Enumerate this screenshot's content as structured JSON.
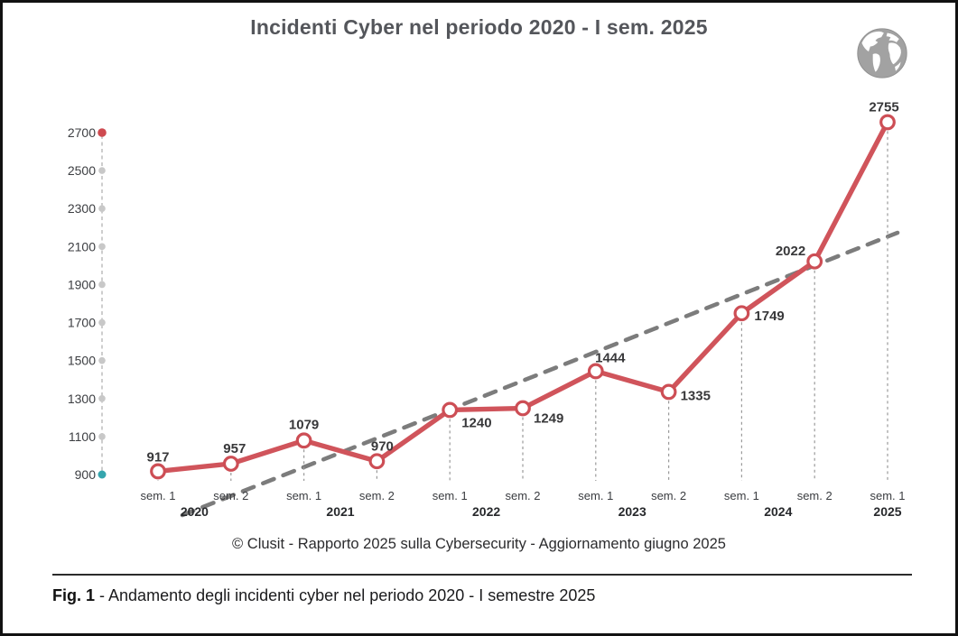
{
  "title": "Incidenti Cyber nel periodo 2020 - I sem. 2025",
  "chart_data": {
    "type": "line",
    "title": "Incidenti Cyber nel periodo 2020 - I sem. 2025",
    "categories": [
      "sem. 1",
      "sem. 2",
      "sem. 1",
      "sem. 2",
      "sem. 1",
      "sem. 2",
      "sem. 1",
      "sem. 2",
      "sem. 1",
      "sem. 2",
      "sem. 1"
    ],
    "years": [
      {
        "label": "2020",
        "from": 0,
        "to": 1
      },
      {
        "label": "2021",
        "from": 2,
        "to": 3
      },
      {
        "label": "2022",
        "from": 4,
        "to": 5
      },
      {
        "label": "2023",
        "from": 6,
        "to": 7
      },
      {
        "label": "2024",
        "from": 8,
        "to": 9
      },
      {
        "label": "2025",
        "from": 10,
        "to": 10
      }
    ],
    "series": [
      {
        "name": "Incidenti cyber",
        "values": [
          917,
          957,
          1079,
          970,
          1240,
          1249,
          1444,
          1335,
          1749,
          2022,
          2755
        ]
      }
    ],
    "ylim": [
      900,
      2700
    ],
    "yticks": [
      900,
      1100,
      1300,
      1500,
      1700,
      1900,
      2100,
      2300,
      2500,
      2700
    ],
    "grid": false,
    "legend": "none",
    "trendline": {
      "shown": true,
      "style": "dashed"
    },
    "colors": {
      "series_line": "#d0545b",
      "marker_fill": "#ffffff",
      "marker_stroke": "#cd4e55",
      "trend_line": "#7c7c7c",
      "axis_dash": "#b8b8b8",
      "axis_dot": "#c8c8c8",
      "axis_dot_top": "#ce4a50",
      "axis_dot_bottom": "#35a5ad",
      "value_label": "#38383a",
      "tick_label": "#3c3e42",
      "sem_label": "#3a3c40",
      "year_label": "#27292c"
    }
  },
  "footer": {
    "text": "© Clusit - Rapporto 2025 sulla Cybersecurity - Aggiornamento giugno 2025"
  },
  "caption": {
    "fig_label": "Fig. 1",
    "text": "- Andamento degli incidenti cyber nel periodo 2020 - I semestre 2025"
  }
}
